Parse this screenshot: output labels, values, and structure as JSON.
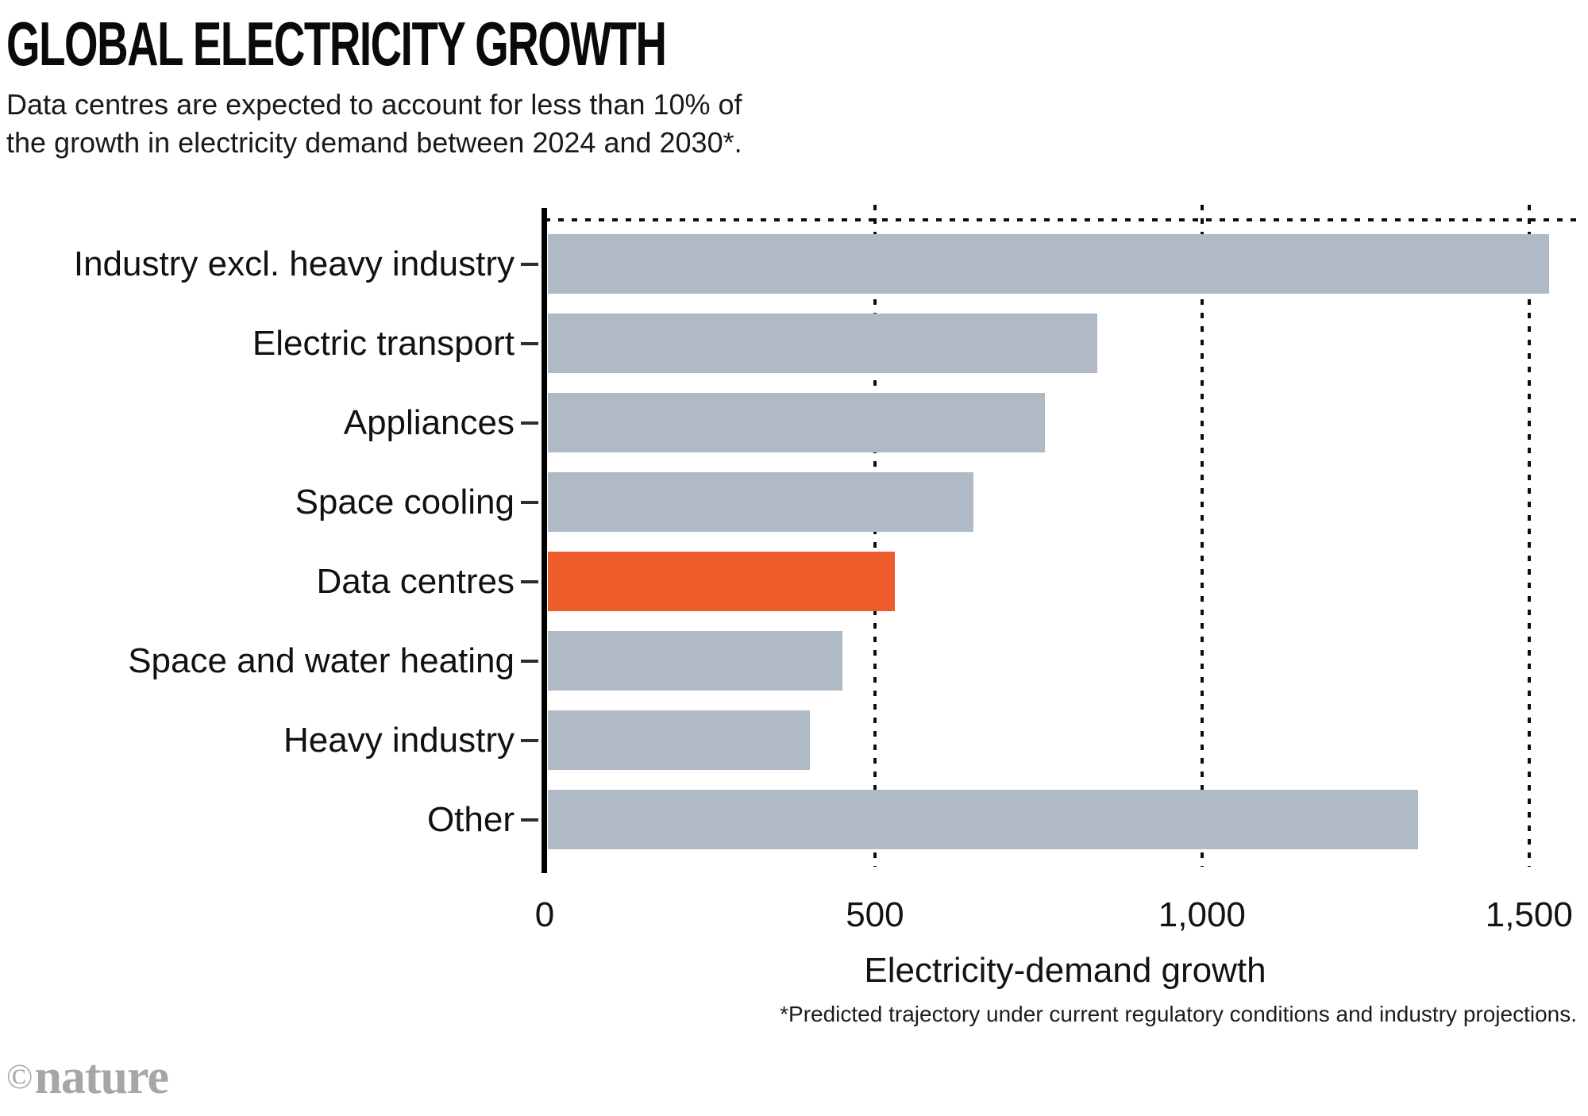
{
  "header": {
    "title": "GLOBAL ELECTRICITY GROWTH",
    "subtitle_line1": "Data centres are expected to account for less than 10% of",
    "subtitle_line2": "the growth in electricity demand between 2024 and 2030*."
  },
  "chart_data": {
    "type": "bar",
    "orientation": "horizontal",
    "title": "GLOBAL ELECTRICITY GROWTH",
    "categories": [
      "Industry excl. heavy industry",
      "Electric transport",
      "Appliances",
      "Space cooling",
      "Data centres",
      "Space and water heating",
      "Heavy industry",
      "Other"
    ],
    "values": [
      1530,
      840,
      760,
      650,
      530,
      450,
      400,
      1330
    ],
    "highlight_category": "Data centres",
    "xlabel": "Electricity-demand growth",
    "ylabel": "",
    "x_ticks": [
      {
        "label": "0",
        "value": 0
      },
      {
        "label": "500",
        "value": 500
      },
      {
        "label": "1,000",
        "value": 1000
      },
      {
        "label": "1,500",
        "value": 1500
      }
    ],
    "xlim": [
      0,
      1584
    ],
    "grid": "dotted vertical gridlines at ticks, dotted top border",
    "legend": "none",
    "colors": {
      "bar": "#AFBAC6",
      "highlight": "#EF5C2B",
      "axis": "#000000",
      "grid": "#0d0d0d"
    }
  },
  "footnote": "*Predicted trajectory under current regulatory conditions and industry projections.",
  "branding": {
    "copyright": "©",
    "logo": "nature"
  }
}
